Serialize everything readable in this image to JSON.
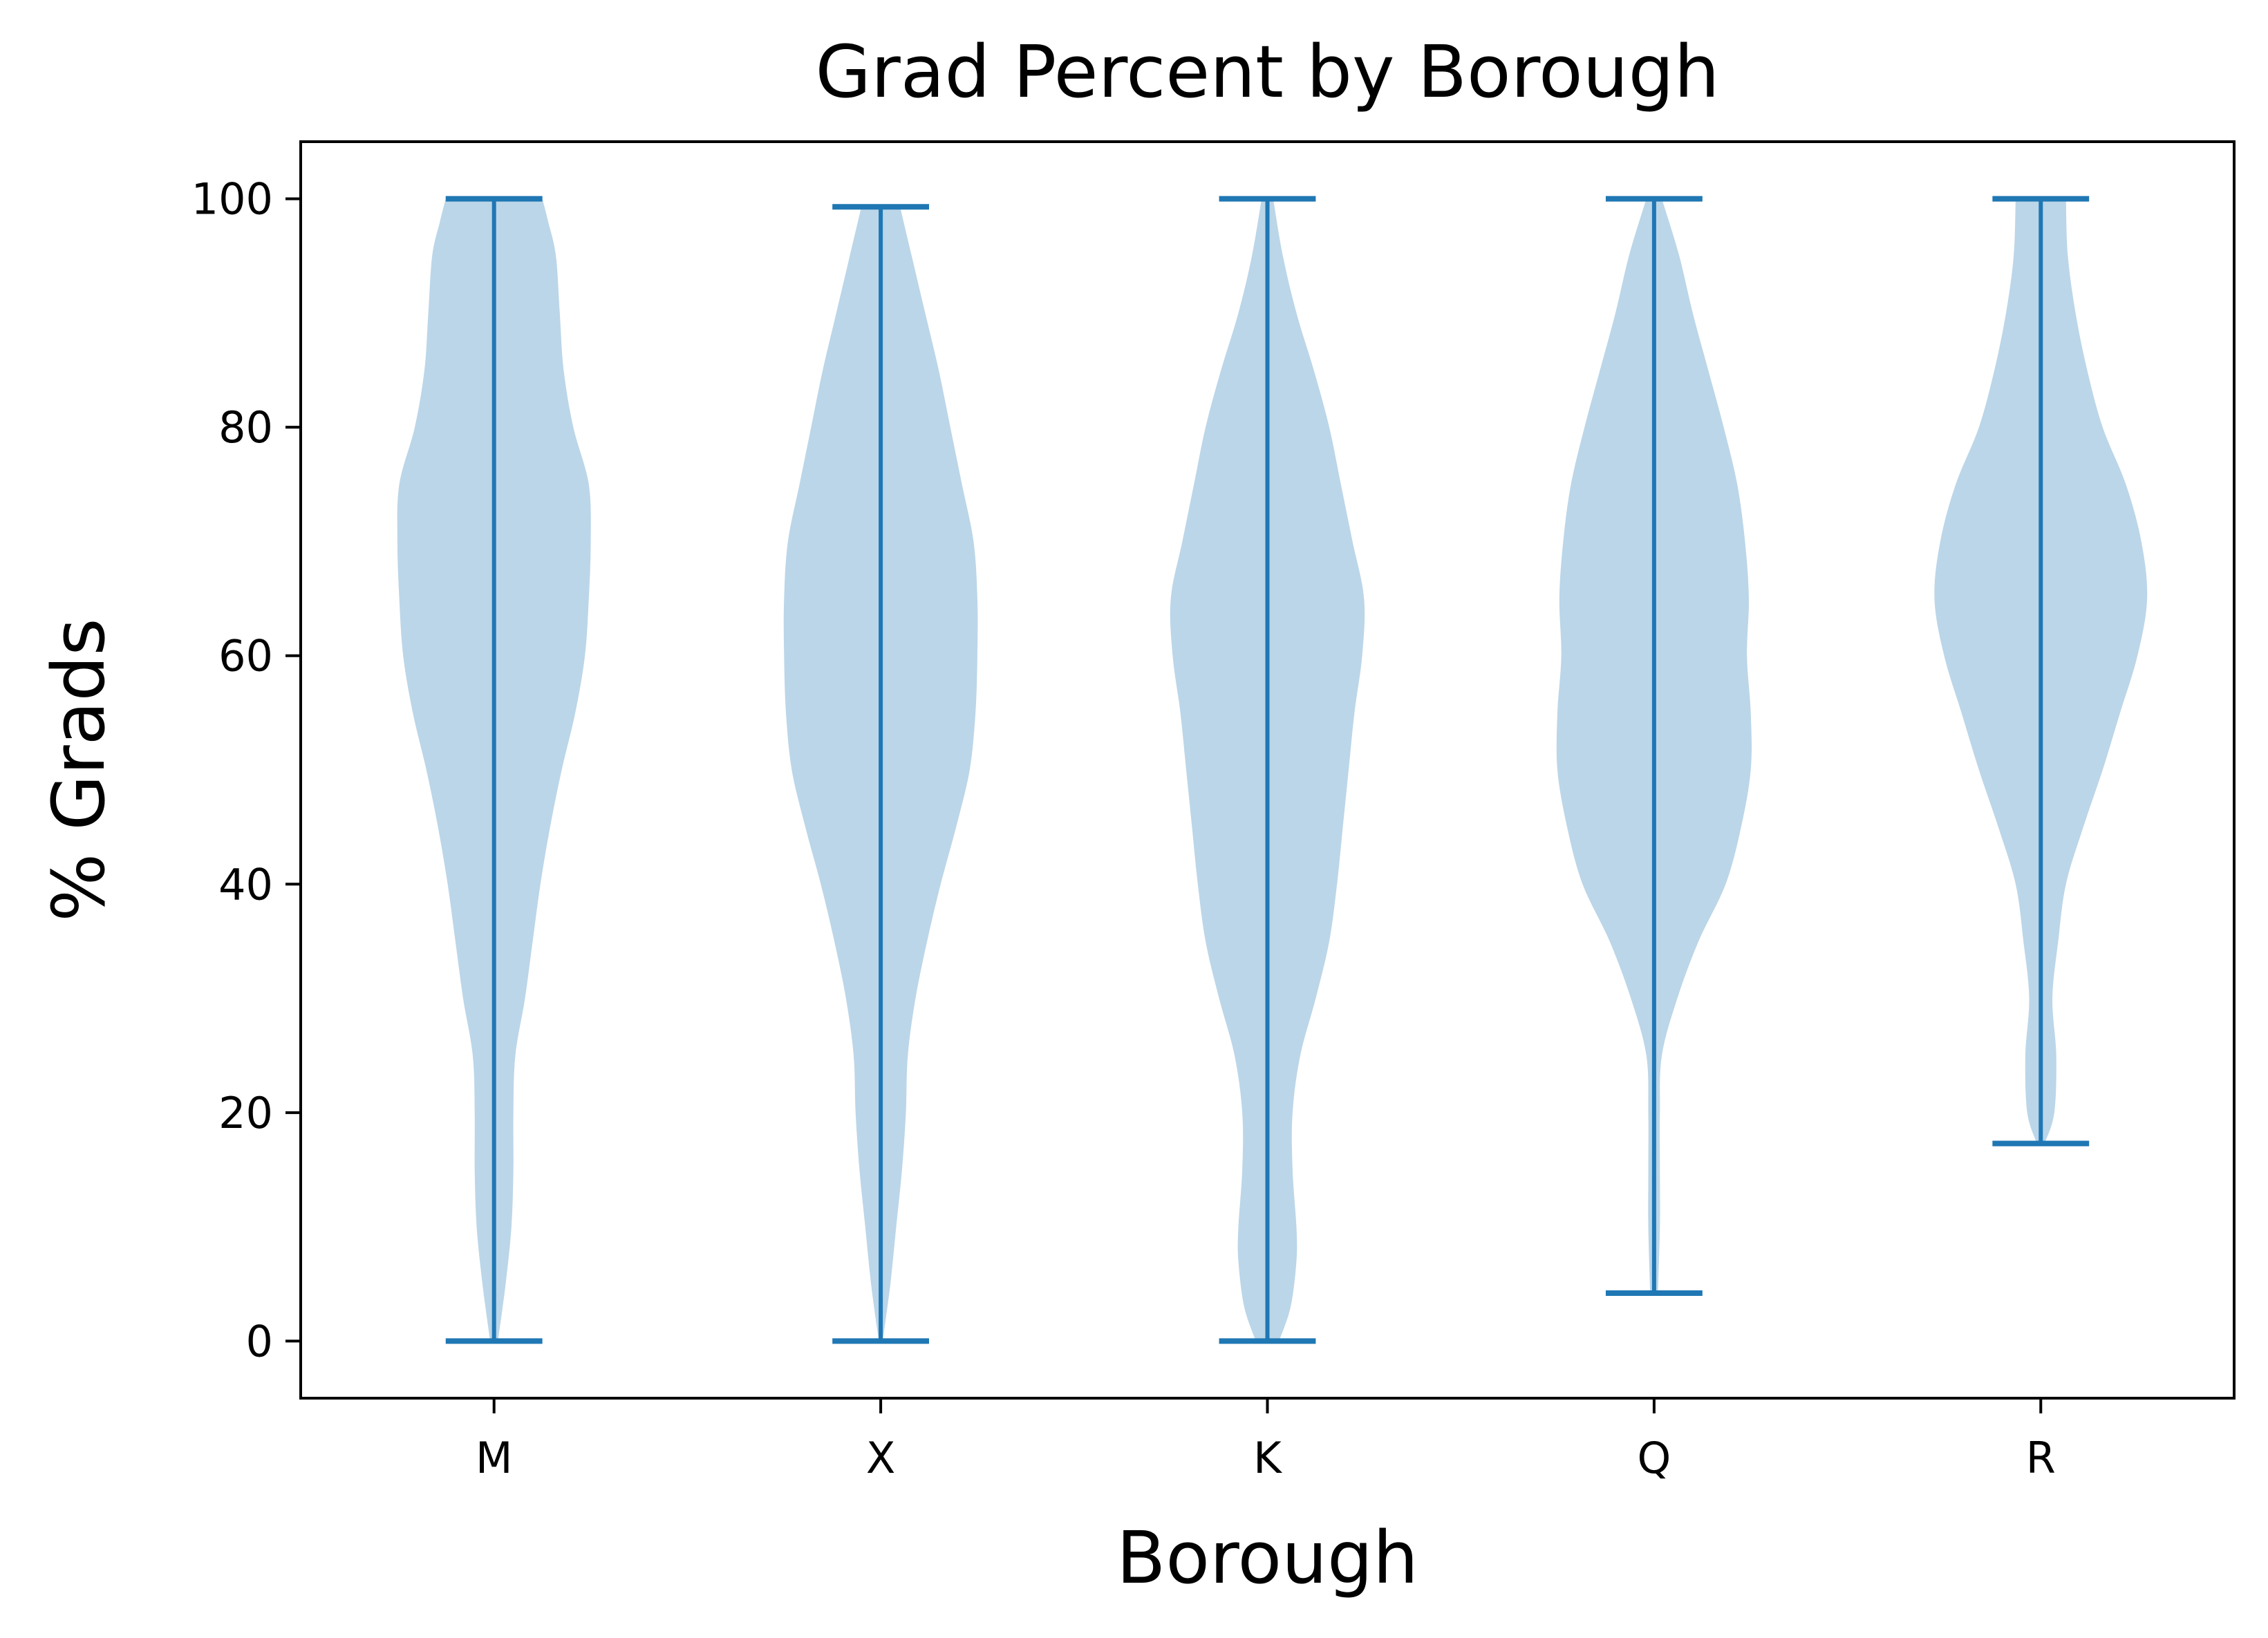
{
  "chart_data": {
    "type": "violin",
    "title": "Grad Percent by Borough",
    "xlabel": "Borough",
    "ylabel": "% Grads",
    "ylim": [
      -5,
      105
    ],
    "yticks": [
      0,
      20,
      40,
      60,
      80,
      100
    ],
    "grid": false,
    "color": "#1f77b4",
    "fill_color": "#bbd6e8",
    "categories": [
      "M",
      "X",
      "K",
      "Q",
      "R"
    ],
    "violins": [
      {
        "category": "M",
        "min": 0,
        "max": 100,
        "profile": [
          [
            0,
            0.02
          ],
          [
            5,
            0.06
          ],
          [
            10,
            0.09
          ],
          [
            15,
            0.1
          ],
          [
            20,
            0.1
          ],
          [
            25,
            0.11
          ],
          [
            30,
            0.16
          ],
          [
            35,
            0.2
          ],
          [
            40,
            0.24
          ],
          [
            45,
            0.29
          ],
          [
            50,
            0.35
          ],
          [
            55,
            0.42
          ],
          [
            60,
            0.47
          ],
          [
            65,
            0.49
          ],
          [
            70,
            0.5
          ],
          [
            75,
            0.49
          ],
          [
            80,
            0.41
          ],
          [
            85,
            0.36
          ],
          [
            90,
            0.34
          ],
          [
            95,
            0.32
          ],
          [
            98,
            0.28
          ],
          [
            100,
            0.25
          ]
        ]
      },
      {
        "category": "X",
        "min": 0,
        "max": 99.3,
        "profile": [
          [
            0,
            0.01
          ],
          [
            5,
            0.05
          ],
          [
            10,
            0.08
          ],
          [
            15,
            0.11
          ],
          [
            20,
            0.13
          ],
          [
            25,
            0.14
          ],
          [
            30,
            0.18
          ],
          [
            35,
            0.24
          ],
          [
            40,
            0.31
          ],
          [
            45,
            0.39
          ],
          [
            50,
            0.46
          ],
          [
            55,
            0.49
          ],
          [
            60,
            0.5
          ],
          [
            65,
            0.5
          ],
          [
            70,
            0.48
          ],
          [
            75,
            0.42
          ],
          [
            80,
            0.36
          ],
          [
            85,
            0.3
          ],
          [
            90,
            0.23
          ],
          [
            95,
            0.16
          ],
          [
            99.3,
            0.1
          ]
        ]
      },
      {
        "category": "K",
        "min": 0,
        "max": 100,
        "profile": [
          [
            0,
            0.06
          ],
          [
            3,
            0.12
          ],
          [
            7,
            0.15
          ],
          [
            10,
            0.15
          ],
          [
            15,
            0.13
          ],
          [
            20,
            0.13
          ],
          [
            25,
            0.17
          ],
          [
            30,
            0.25
          ],
          [
            35,
            0.32
          ],
          [
            40,
            0.36
          ],
          [
            45,
            0.39
          ],
          [
            50,
            0.42
          ],
          [
            55,
            0.45
          ],
          [
            60,
            0.49
          ],
          [
            65,
            0.5
          ],
          [
            70,
            0.44
          ],
          [
            75,
            0.38
          ],
          [
            80,
            0.32
          ],
          [
            85,
            0.24
          ],
          [
            90,
            0.15
          ],
          [
            95,
            0.08
          ],
          [
            100,
            0.03
          ]
        ]
      },
      {
        "category": "Q",
        "min": 4.2,
        "max": 100,
        "profile": [
          [
            4.2,
            0.02
          ],
          [
            10,
            0.03
          ],
          [
            15,
            0.03
          ],
          [
            20,
            0.03
          ],
          [
            25,
            0.04
          ],
          [
            30,
            0.12
          ],
          [
            35,
            0.23
          ],
          [
            40,
            0.37
          ],
          [
            45,
            0.45
          ],
          [
            50,
            0.5
          ],
          [
            55,
            0.5
          ],
          [
            60,
            0.48
          ],
          [
            65,
            0.49
          ],
          [
            70,
            0.47
          ],
          [
            75,
            0.43
          ],
          [
            80,
            0.36
          ],
          [
            85,
            0.28
          ],
          [
            90,
            0.2
          ],
          [
            95,
            0.13
          ],
          [
            100,
            0.04
          ]
        ]
      },
      {
        "category": "R",
        "min": 17.3,
        "max": 100,
        "profile": [
          [
            17.3,
            0.02
          ],
          [
            20,
            0.07
          ],
          [
            25,
            0.08
          ],
          [
            30,
            0.06
          ],
          [
            35,
            0.09
          ],
          [
            40,
            0.13
          ],
          [
            45,
            0.22
          ],
          [
            50,
            0.32
          ],
          [
            55,
            0.41
          ],
          [
            60,
            0.5
          ],
          [
            65,
            0.55
          ],
          [
            70,
            0.52
          ],
          [
            75,
            0.44
          ],
          [
            80,
            0.32
          ],
          [
            85,
            0.24
          ],
          [
            90,
            0.18
          ],
          [
            95,
            0.14
          ],
          [
            100,
            0.13
          ]
        ]
      }
    ]
  }
}
